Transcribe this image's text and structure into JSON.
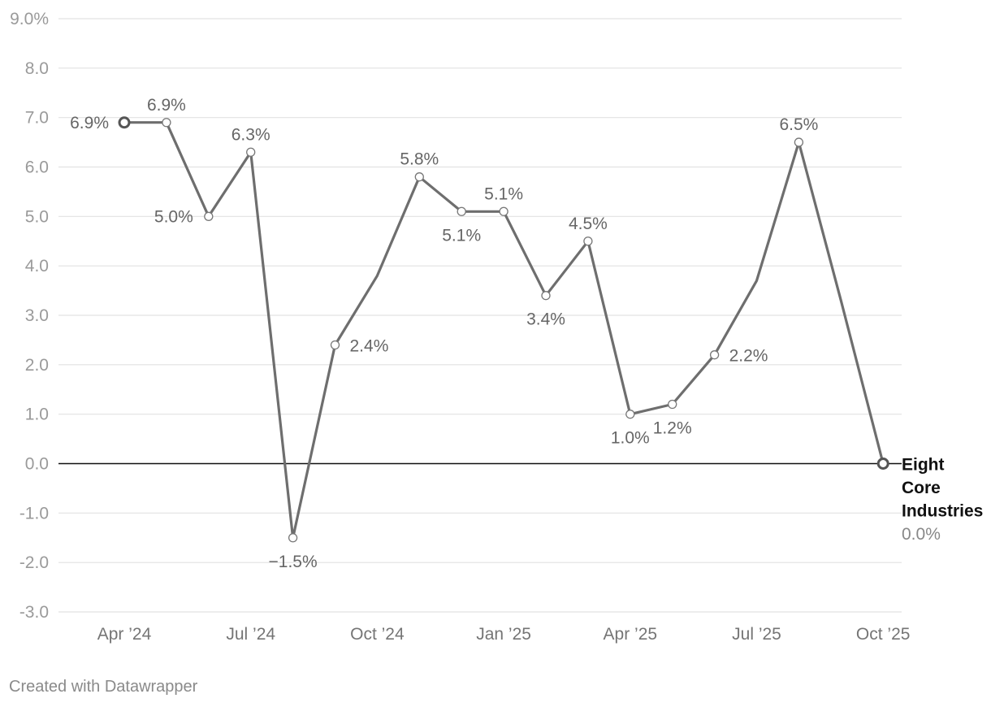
{
  "chart_data": {
    "type": "line",
    "title": "",
    "xlabel": "",
    "ylabel": "",
    "ylim": [
      -3.0,
      9.0
    ],
    "yticks": [
      {
        "value": 9,
        "label": "9.0%"
      },
      {
        "value": 8,
        "label": "8.0"
      },
      {
        "value": 7,
        "label": "7.0"
      },
      {
        "value": 6,
        "label": "6.0"
      },
      {
        "value": 5,
        "label": "5.0"
      },
      {
        "value": 4,
        "label": "4.0"
      },
      {
        "value": 3,
        "label": "3.0"
      },
      {
        "value": 2,
        "label": "2.0"
      },
      {
        "value": 1,
        "label": "1.0"
      },
      {
        "value": 0,
        "label": "0.0"
      },
      {
        "value": -1,
        "label": "-1.0"
      },
      {
        "value": -2,
        "label": "-2.0"
      },
      {
        "value": -3,
        "label": "-3.0"
      }
    ],
    "xticks": [
      {
        "index": 0,
        "label": "Apr ’24"
      },
      {
        "index": 3,
        "label": "Jul ’24"
      },
      {
        "index": 6,
        "label": "Oct ’24"
      },
      {
        "index": 9,
        "label": "Jan ’25"
      },
      {
        "index": 12,
        "label": "Apr ’25"
      },
      {
        "index": 15,
        "label": "Jul ’25"
      },
      {
        "index": 18,
        "label": "Oct ’25"
      }
    ],
    "categories": [
      "Apr 2024",
      "May 2024",
      "Jun 2024",
      "Jul 2024",
      "Aug 2024",
      "Sep 2024",
      "Oct 2024",
      "Nov 2024",
      "Dec 2024",
      "Jan 2025",
      "Feb 2025",
      "Mar 2025",
      "Apr 2025",
      "May 2025",
      "Jun 2025",
      "Jul 2025",
      "Aug 2025",
      "Sep 2025",
      "Oct 2025"
    ],
    "series": [
      {
        "name": "Eight Core Industries",
        "color": "#6e6e6e",
        "values": [
          6.9,
          6.9,
          5.0,
          6.3,
          -1.5,
          2.4,
          3.8,
          5.8,
          5.1,
          5.1,
          3.4,
          4.5,
          1.0,
          1.2,
          2.2,
          3.7,
          6.5,
          3.3,
          0.0
        ],
        "end_value_label": "0.0%",
        "data_labels": [
          {
            "index": 0,
            "text": "6.9%",
            "pos": "left"
          },
          {
            "index": 1,
            "text": "6.9%",
            "pos": "above"
          },
          {
            "index": 2,
            "text": "5.0%",
            "pos": "left"
          },
          {
            "index": 3,
            "text": "6.3%",
            "pos": "above"
          },
          {
            "index": 4,
            "text": "−1.5%",
            "pos": "below"
          },
          {
            "index": 5,
            "text": "2.4%",
            "pos": "right"
          },
          {
            "index": 7,
            "text": "5.8%",
            "pos": "above"
          },
          {
            "index": 8,
            "text": "5.1%",
            "pos": "below"
          },
          {
            "index": 9,
            "text": "5.1%",
            "pos": "above"
          },
          {
            "index": 10,
            "text": "3.4%",
            "pos": "below"
          },
          {
            "index": 11,
            "text": "4.5%",
            "pos": "above"
          },
          {
            "index": 12,
            "text": "1.0%",
            "pos": "below"
          },
          {
            "index": 13,
            "text": "1.2%",
            "pos": "below"
          },
          {
            "index": 14,
            "text": "2.2%",
            "pos": "right"
          },
          {
            "index": 16,
            "text": "6.5%",
            "pos": "above"
          }
        ]
      }
    ],
    "markers": [
      0,
      1,
      2,
      3,
      4,
      5,
      7,
      8,
      9,
      10,
      11,
      12,
      13,
      14,
      16,
      18
    ],
    "zero_line": true,
    "grid": true
  },
  "footer": {
    "credit": "Created with Datawrapper"
  }
}
